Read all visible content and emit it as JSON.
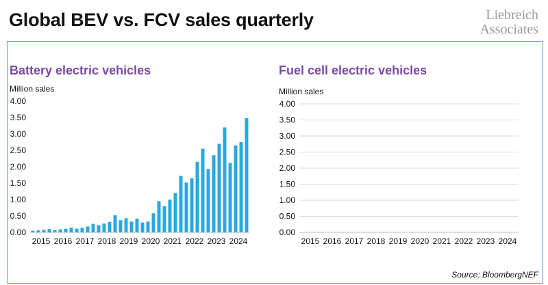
{
  "header": {
    "title": "Global BEV vs. FCV sales quarterly",
    "logo_line1": "Liebreich",
    "logo_line2": "Associates"
  },
  "footer": {
    "source": "Source: BloombergNEF"
  },
  "colors": {
    "bar": "#29a8e0",
    "panel_title": "#7b4aa5",
    "frame": "#4fa6dc",
    "grid": "#d9d9d9"
  },
  "chart_data": [
    {
      "type": "bar",
      "title": "Battery electric vehicles",
      "ylabel": "Million sales",
      "ylim": [
        0,
        4
      ],
      "yticks": [
        "0.00",
        "0.50",
        "1.00",
        "1.50",
        "2.00",
        "2.50",
        "3.00",
        "3.50",
        "4.00"
      ],
      "xtick_labels": [
        "2015",
        "2016",
        "2017",
        "2018",
        "2019",
        "2020",
        "2021",
        "2022",
        "2023",
        "2024"
      ],
      "quarters": [
        "2015 Q1",
        "2015 Q2",
        "2015 Q3",
        "2015 Q4",
        "2016 Q1",
        "2016 Q2",
        "2016 Q3",
        "2016 Q4",
        "2017 Q1",
        "2017 Q2",
        "2017 Q3",
        "2017 Q4",
        "2018 Q1",
        "2018 Q2",
        "2018 Q3",
        "2018 Q4",
        "2019 Q1",
        "2019 Q2",
        "2019 Q3",
        "2019 Q4",
        "2020 Q1",
        "2020 Q2",
        "2020 Q3",
        "2020 Q4",
        "2021 Q1",
        "2021 Q2",
        "2021 Q3",
        "2021 Q4",
        "2022 Q1",
        "2022 Q2",
        "2022 Q3",
        "2022 Q4",
        "2023 Q1",
        "2023 Q2",
        "2023 Q3",
        "2023 Q4",
        "2024 Q1",
        "2024 Q2",
        "2024 Q3",
        "2024 Q4"
      ],
      "values": [
        0.05,
        0.06,
        0.08,
        0.1,
        0.07,
        0.09,
        0.11,
        0.14,
        0.11,
        0.14,
        0.18,
        0.26,
        0.22,
        0.27,
        0.32,
        0.52,
        0.37,
        0.43,
        0.33,
        0.42,
        0.3,
        0.33,
        0.58,
        0.95,
        0.8,
        1.0,
        1.2,
        1.72,
        1.52,
        1.65,
        2.15,
        2.55,
        1.93,
        2.35,
        2.7,
        3.2,
        2.12,
        2.65,
        2.75,
        3.48
      ],
      "grid": false
    },
    {
      "type": "bar",
      "title": "Fuel cell electric vehicles",
      "ylabel": "Million sales",
      "ylim": [
        0,
        4
      ],
      "yticks": [
        "0.00",
        "0.50",
        "1.00",
        "1.50",
        "2.00",
        "2.50",
        "3.00",
        "3.50",
        "4.00"
      ],
      "xtick_labels": [
        "2015",
        "2016",
        "2017",
        "2018",
        "2019",
        "2020",
        "2021",
        "2022",
        "2023",
        "2024"
      ],
      "values": [
        0.0005,
        0.0005,
        0.0006,
        0.0008,
        0.0006,
        0.0007,
        0.0008,
        0.001,
        0.001,
        0.001,
        0.001,
        0.002,
        0.001,
        0.002,
        0.002,
        0.003,
        0.002,
        0.003,
        0.003,
        0.004,
        0.002,
        0.002,
        0.003,
        0.004,
        0.004,
        0.004,
        0.004,
        0.005,
        0.004,
        0.005,
        0.005,
        0.005,
        0.004,
        0.004,
        0.004,
        0.004,
        0.003,
        0.003,
        0.003,
        0.003
      ],
      "grid": true
    }
  ]
}
